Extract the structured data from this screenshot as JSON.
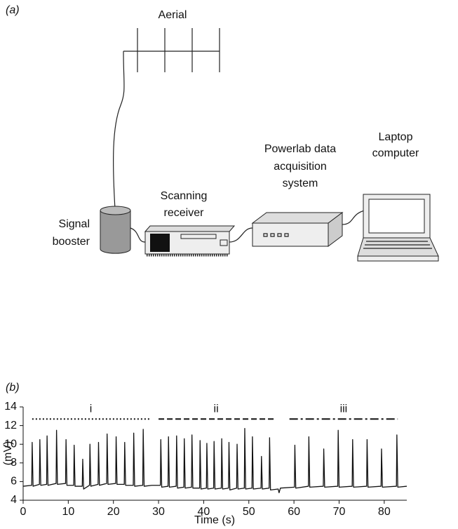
{
  "diagram": {
    "panel_label": "(a)",
    "aerial": [
      "Aerial"
    ],
    "booster": [
      "Signal",
      "booster"
    ],
    "receiver": [
      "Scanning",
      "receiver"
    ],
    "powerlab": [
      "Powerlab data",
      "acquisition",
      "system"
    ],
    "laptop": [
      "Laptop",
      "computer"
    ]
  },
  "chart_data": {
    "type": "line",
    "panel_label": "(b)",
    "x_label": "Time (s)",
    "y_label": "(mV)",
    "xlim": [
      0,
      85
    ],
    "ylim": [
      4,
      14
    ],
    "xticks": [
      0,
      10,
      20,
      30,
      40,
      50,
      60,
      70,
      80
    ],
    "yticks": [
      4,
      6,
      8,
      10,
      12,
      14
    ],
    "annotations": [
      {
        "text": "i",
        "x": [
          2,
          28
        ],
        "y": 12.7,
        "style": "dotted"
      },
      {
        "text": "ii",
        "x": [
          30,
          55.5
        ],
        "y": 12.7,
        "style": "dashed"
      },
      {
        "text": "iii",
        "x": [
          59,
          83
        ],
        "y": 12.7,
        "style": "dashdot"
      }
    ],
    "series": [
      {
        "color": "#111111",
        "x": [
          0,
          1.9,
          2.0,
          2.2,
          3.6,
          3.7,
          3.9,
          5.2,
          5.3,
          5.5,
          7.3,
          7.4,
          7.6,
          9.4,
          9.5,
          9.7,
          11.2,
          11.3,
          11.5,
          13.1,
          13.2,
          13.4,
          14.7,
          14.8,
          15.0,
          16.6,
          16.7,
          16.9,
          18.5,
          18.6,
          18.8,
          20.5,
          20.6,
          20.8,
          22.4,
          22.5,
          22.7,
          24.4,
          24.5,
          24.7,
          26.5,
          26.6,
          26.8,
          28.5,
          30.4,
          30.5,
          30.7,
          32.1,
          32.2,
          32.4,
          33.9,
          34.0,
          34.2,
          35.6,
          35.7,
          35.9,
          37.3,
          37.4,
          37.6,
          39.1,
          39.2,
          39.4,
          40.6,
          40.7,
          40.9,
          42.2,
          42.3,
          42.5,
          43.9,
          44.0,
          44.2,
          45.5,
          45.6,
          45.8,
          47.3,
          47.4,
          47.6,
          49.0,
          49.1,
          49.3,
          50.7,
          50.8,
          51.0,
          52.7,
          52.8,
          53.0,
          54.5,
          54.6,
          54.8,
          56.5,
          56.7,
          57.0,
          60.1,
          60.2,
          60.4,
          63.2,
          63.3,
          63.5,
          66.5,
          66.6,
          66.8,
          69.7,
          69.8,
          70.0,
          72.9,
          73.0,
          73.2,
          76.1,
          76.2,
          76.4,
          79.3,
          79.4,
          79.6,
          82.7,
          82.8,
          83.0,
          85
        ],
        "values": [
          5.5,
          5.6,
          10.2,
          5.5,
          5.7,
          10.5,
          5.6,
          5.7,
          10.9,
          5.6,
          5.8,
          11.5,
          5.7,
          5.8,
          10.5,
          5.6,
          5.6,
          9.9,
          5.5,
          5.5,
          8.4,
          5.2,
          5.6,
          10.0,
          5.5,
          5.7,
          10.2,
          5.6,
          5.8,
          11.1,
          5.7,
          5.8,
          10.8,
          5.7,
          5.7,
          10.2,
          5.6,
          5.6,
          11.2,
          5.5,
          5.6,
          11.6,
          5.5,
          5.6,
          5.6,
          10.5,
          5.4,
          5.5,
          10.8,
          5.4,
          5.5,
          10.9,
          5.3,
          5.4,
          10.6,
          5.3,
          5.4,
          11.0,
          5.3,
          5.3,
          10.4,
          5.2,
          5.3,
          10.1,
          5.2,
          5.3,
          10.3,
          5.2,
          5.3,
          10.6,
          5.2,
          5.3,
          10.2,
          5.1,
          5.3,
          10.0,
          5.2,
          5.3,
          11.7,
          5.2,
          5.3,
          10.8,
          5.2,
          5.3,
          8.7,
          5.2,
          5.3,
          10.7,
          5.1,
          5.2,
          4.8,
          5.3,
          5.4,
          9.9,
          5.3,
          5.5,
          10.8,
          5.4,
          5.5,
          9.5,
          5.4,
          5.5,
          11.5,
          5.4,
          5.5,
          10.5,
          5.4,
          5.5,
          10.5,
          5.4,
          5.5,
          9.5,
          5.4,
          5.5,
          11.0,
          5.4,
          5.5
        ]
      }
    ]
  }
}
